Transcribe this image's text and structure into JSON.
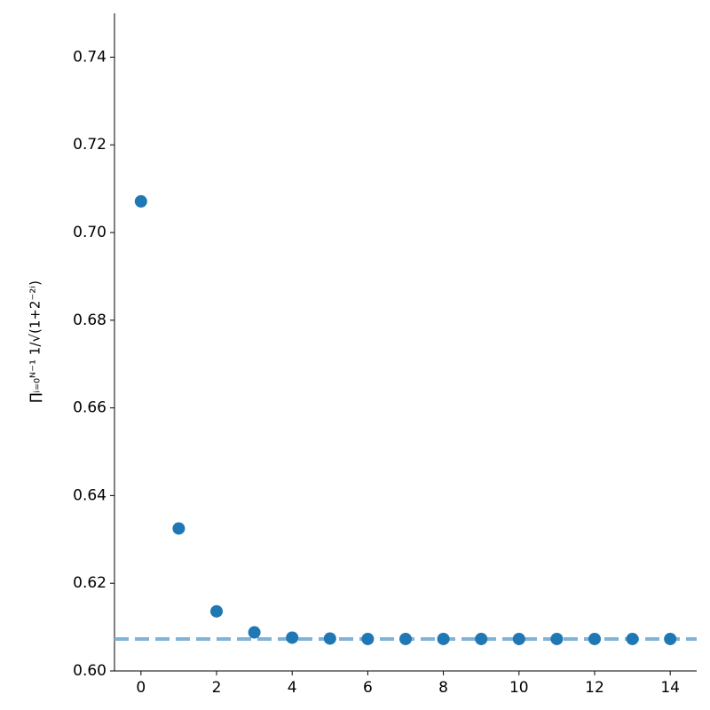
{
  "chart_data": {
    "type": "scatter",
    "y_label": "∏ᵢ₌₀ᴺ⁻¹ 1/√(1+2⁻²ⁱ)",
    "x": [
      0,
      1,
      2,
      3,
      4,
      5,
      6,
      7,
      8,
      9,
      10,
      11,
      12,
      13,
      14
    ],
    "values": [
      0.7071,
      0.6325,
      0.6136,
      0.6088,
      0.6076,
      0.6074,
      0.6073,
      0.6073,
      0.6073,
      0.6073,
      0.6073,
      0.6073,
      0.6073,
      0.6073,
      0.6073
    ],
    "color": "#1f77b4",
    "reference_line": 0.6073,
    "reference_color": "#7fb3d8",
    "xlim": [
      -0.7,
      14.7
    ],
    "ylim": [
      0.6,
      0.75
    ],
    "xticks": [
      0,
      2,
      4,
      6,
      8,
      10,
      12,
      14
    ],
    "yticks": [
      {
        "value": 0.6,
        "label": "0.60"
      },
      {
        "value": 0.62,
        "label": "0.62"
      },
      {
        "value": 0.64,
        "label": "0.64"
      },
      {
        "value": 0.66,
        "label": "0.66"
      },
      {
        "value": 0.68,
        "label": "0.68"
      },
      {
        "value": 0.7,
        "label": "0.70"
      },
      {
        "value": 0.72,
        "label": "0.72"
      },
      {
        "value": 0.74,
        "label": "0.74"
      }
    ]
  }
}
